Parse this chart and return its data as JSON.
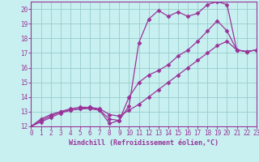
{
  "xlabel": "Windchill (Refroidissement éolien,°C)",
  "bg_color": "#c8f0f0",
  "grid_color": "#99cccc",
  "line_color": "#993399",
  "spine_color": "#993399",
  "xlim": [
    0,
    23
  ],
  "ylim": [
    12,
    20.5
  ],
  "xticks": [
    0,
    1,
    2,
    3,
    4,
    5,
    6,
    7,
    8,
    9,
    10,
    11,
    12,
    13,
    14,
    15,
    16,
    17,
    18,
    19,
    20,
    21,
    22,
    23
  ],
  "yticks": [
    12,
    13,
    14,
    15,
    16,
    17,
    18,
    19,
    20
  ],
  "line1_x": [
    0,
    1,
    2,
    3,
    4,
    5,
    6,
    7,
    8,
    9,
    10,
    11,
    12,
    13,
    14,
    15,
    16,
    17,
    18,
    19,
    20,
    21,
    22,
    23
  ],
  "line1_y": [
    12.0,
    12.5,
    12.8,
    13.0,
    13.1,
    13.2,
    13.2,
    13.1,
    12.2,
    12.4,
    13.4,
    17.7,
    19.3,
    19.9,
    19.5,
    19.8,
    19.5,
    19.7,
    20.3,
    20.5,
    20.3,
    17.2,
    17.1,
    17.2
  ],
  "line2_x": [
    0,
    1,
    2,
    3,
    4,
    5,
    6,
    7,
    8,
    9,
    10,
    11,
    12,
    13,
    14,
    15,
    16,
    17,
    18,
    19,
    20,
    21,
    22,
    23
  ],
  "line2_y": [
    12.0,
    12.4,
    12.7,
    13.0,
    13.2,
    13.3,
    13.3,
    13.1,
    12.5,
    12.4,
    14.0,
    15.0,
    15.5,
    15.8,
    16.2,
    16.8,
    17.2,
    17.8,
    18.5,
    19.2,
    18.5,
    17.2,
    17.1,
    17.2
  ],
  "line3_x": [
    0,
    1,
    2,
    3,
    4,
    5,
    6,
    7,
    8,
    9,
    10,
    11,
    12,
    13,
    14,
    15,
    16,
    17,
    18,
    19,
    20,
    21,
    22,
    23
  ],
  "line3_y": [
    12.0,
    12.3,
    12.6,
    12.9,
    13.1,
    13.2,
    13.3,
    13.2,
    12.8,
    12.7,
    13.1,
    13.5,
    14.0,
    14.5,
    15.0,
    15.5,
    16.0,
    16.5,
    17.0,
    17.5,
    17.8,
    17.2,
    17.1,
    17.2
  ],
  "marker": "D",
  "markersize": 2.5,
  "linewidth": 0.9,
  "tick_fontsize": 5.5,
  "xlabel_fontsize": 6.0
}
